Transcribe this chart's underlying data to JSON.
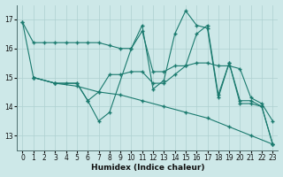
{
  "xlabel": "Humidex (Indice chaleur)",
  "background_color": "#cde8e8",
  "grid_color": "#aed0d0",
  "line_color": "#1a7a6e",
  "xlim": [
    -0.5,
    23.5
  ],
  "ylim": [
    12.5,
    17.5
  ],
  "yticks": [
    13,
    14,
    15,
    16,
    17
  ],
  "xticks": [
    0,
    1,
    2,
    3,
    4,
    5,
    6,
    7,
    8,
    9,
    10,
    11,
    12,
    13,
    14,
    15,
    16,
    17,
    18,
    19,
    20,
    21,
    22,
    23
  ],
  "line1_x": [
    0,
    1,
    2,
    3,
    4,
    5,
    6,
    7,
    8,
    9,
    10,
    11,
    12,
    13,
    14,
    15,
    16,
    17,
    18,
    19,
    20,
    21,
    22,
    23
  ],
  "line1_y": [
    16.9,
    16.2,
    16.2,
    16.2,
    16.2,
    16.2,
    16.2,
    16.2,
    16.1,
    16.0,
    16.0,
    16.6,
    15.2,
    15.2,
    15.4,
    15.4,
    15.5,
    15.5,
    15.4,
    15.4,
    15.3,
    14.3,
    14.1,
    13.5
  ],
  "line2_x": [
    0,
    1,
    3,
    5,
    6,
    7,
    8,
    10,
    11,
    12,
    13,
    14,
    15,
    16,
    17,
    18,
    19,
    20,
    21,
    22,
    23
  ],
  "line2_y": [
    16.9,
    15.0,
    14.8,
    14.8,
    14.2,
    13.5,
    13.8,
    16.0,
    16.8,
    14.6,
    14.9,
    16.5,
    17.3,
    16.8,
    16.7,
    14.3,
    15.5,
    14.1,
    14.1,
    14.0,
    12.7
  ],
  "line3_x": [
    1,
    3,
    4,
    5,
    6,
    7,
    8,
    9,
    10,
    11,
    12,
    13,
    14,
    15,
    16,
    17,
    18,
    19,
    20,
    21,
    22,
    23
  ],
  "line3_y": [
    15.0,
    14.8,
    14.8,
    14.8,
    14.2,
    14.5,
    15.1,
    15.1,
    15.2,
    15.2,
    14.8,
    14.8,
    15.1,
    15.4,
    16.5,
    16.8,
    14.4,
    15.5,
    14.2,
    14.2,
    14.0,
    12.7
  ],
  "line4_x": [
    1,
    3,
    5,
    7,
    9,
    11,
    13,
    15,
    17,
    19,
    21,
    23
  ],
  "line4_y": [
    15.0,
    14.8,
    14.7,
    14.5,
    14.4,
    14.2,
    14.0,
    13.8,
    13.6,
    13.3,
    13.0,
    12.7
  ]
}
